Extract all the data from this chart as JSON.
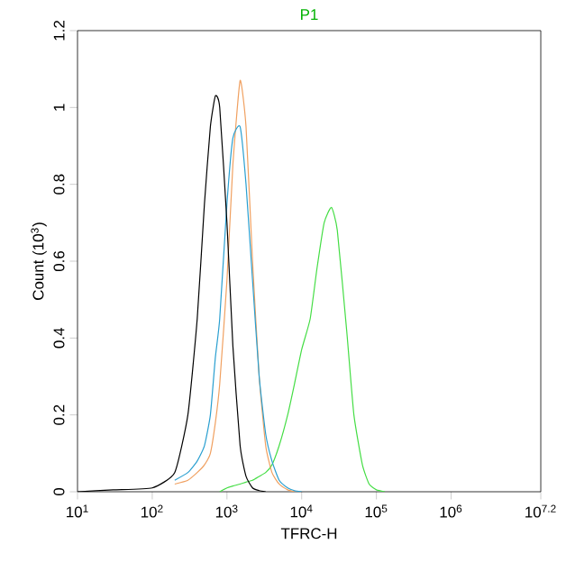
{
  "chart_data": {
    "type": "line",
    "title": "P1",
    "xlabel": "TFRC-H",
    "ylabel": "Count (10$^{3}$)",
    "log": "x",
    "x": [
      10,
      30,
      100,
      200,
      300,
      400,
      500,
      600,
      700,
      800,
      1000,
      1200,
      1500,
      1800,
      2200,
      2700,
      3300,
      4000,
      5000,
      6500,
      8000,
      10000,
      13000,
      16000,
      20000,
      25000,
      30000,
      40000,
      50000,
      65000,
      80000,
      100000,
      130000
    ],
    "series": [
      {
        "color": "#44dd44",
        "values": [
          null,
          null,
          null,
          null,
          null,
          null,
          null,
          null,
          null,
          0,
          0.01,
          0.015,
          0.02,
          0.025,
          0.03,
          0.04,
          0.05,
          0.07,
          0.12,
          0.2,
          0.28,
          0.37,
          0.45,
          0.58,
          0.7,
          0.74,
          0.68,
          0.42,
          0.2,
          0.07,
          0.02,
          0.005,
          0
        ]
      },
      {
        "color": "#f0a060",
        "values": [
          null,
          null,
          null,
          0.02,
          0.03,
          0.05,
          0.07,
          0.1,
          0.18,
          0.28,
          0.55,
          0.85,
          1.07,
          0.95,
          0.6,
          0.3,
          0.12,
          0.05,
          0.02,
          0.005,
          0,
          null,
          null,
          null,
          null,
          null,
          null,
          null,
          null,
          null,
          null,
          null,
          null
        ]
      },
      {
        "color": "#2a9fd0",
        "values": [
          null,
          null,
          null,
          0.03,
          0.05,
          0.08,
          0.12,
          0.2,
          0.35,
          0.45,
          0.75,
          0.92,
          0.95,
          0.8,
          0.55,
          0.3,
          0.15,
          0.08,
          0.03,
          0.01,
          0.003,
          0,
          null,
          null,
          null,
          null,
          null,
          null,
          null,
          null,
          null,
          null,
          null
        ]
      },
      {
        "color": "#000000",
        "values": [
          0,
          0.005,
          0.01,
          0.05,
          0.2,
          0.45,
          0.75,
          0.95,
          1.03,
          1.0,
          0.7,
          0.38,
          0.12,
          0.04,
          0.01,
          0.003,
          0,
          null,
          null,
          null,
          null,
          null,
          null,
          null,
          null,
          null,
          null,
          null,
          null,
          null,
          null,
          null,
          null
        ]
      }
    ],
    "xlim": [
      10,
      15848932
    ],
    "xticks": [
      {
        "value": 10,
        "label": "10$^{1}$"
      },
      {
        "value": 100,
        "label": "10$^{2}$"
      },
      {
        "value": 1000,
        "label": "10$^{3}$"
      },
      {
        "value": 10000,
        "label": "10$^{4}$"
      },
      {
        "value": 100000,
        "label": "10$^{5}$"
      },
      {
        "value": 1000000,
        "label": "10$^{6}$"
      },
      {
        "value": 15848932,
        "label": "10$^{7.2}$"
      }
    ],
    "ylim": [
      0,
      1.2
    ],
    "yticks": [
      0,
      0.2,
      0.4,
      0.6,
      0.8,
      1,
      1.2
    ],
    "grid": false,
    "marker": "none",
    "line_style": "solid"
  }
}
